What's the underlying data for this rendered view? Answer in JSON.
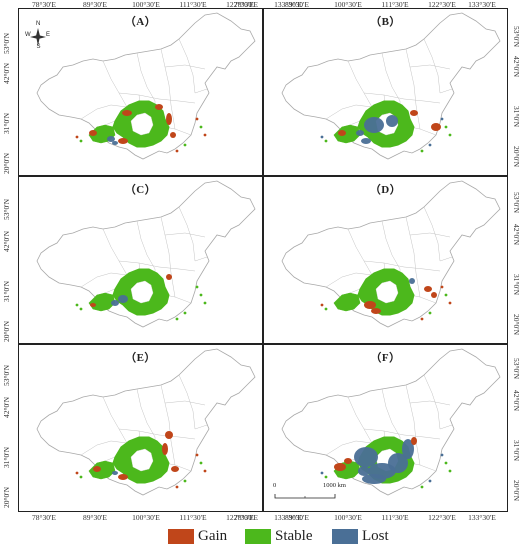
{
  "figure": {
    "panels": [
      {
        "label": "（A）",
        "variant": "A"
      },
      {
        "label": "（B）",
        "variant": "B"
      },
      {
        "label": "（C）",
        "variant": "C"
      },
      {
        "label": "（D）",
        "variant": "D"
      },
      {
        "label": "（E）",
        "variant": "E"
      },
      {
        "label": "（F）",
        "variant": "F"
      }
    ],
    "lon_ticks": [
      "78°30'E",
      "89°30'E",
      "100°30'E",
      "111°30'E",
      "122°30'E",
      "133°30'E"
    ],
    "lat_ticks": [
      "53°0'N",
      "42°0'N",
      "31°0'N",
      "20°0'N"
    ],
    "compass": {
      "n": "N",
      "s": "S",
      "e": "E",
      "w": "W"
    },
    "scale": {
      "start": "0",
      "end": "1000 km"
    }
  },
  "legend": [
    {
      "label": "Gain",
      "color": "#c0461a"
    },
    {
      "label": "Stable",
      "color": "#4cb81c"
    },
    {
      "label": "Lost",
      "color": "#4a6f96"
    }
  ]
}
